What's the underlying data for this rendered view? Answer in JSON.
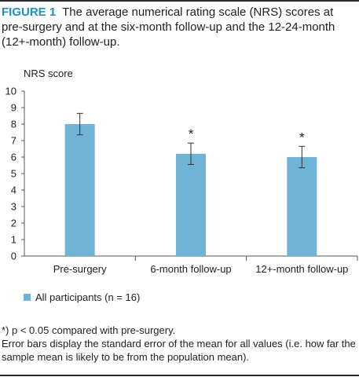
{
  "figure": {
    "label": "FIGURE 1",
    "caption": "The average numerical rating scale (NRS) scores at pre-surgery and at the six-month follow-up and the 12-24-month (12+-month) follow-up."
  },
  "chart_data": {
    "type": "bar",
    "ylabel": "NRS score",
    "xlabel": "",
    "ylim": [
      0,
      10
    ],
    "yticks": [
      "0",
      "1",
      "2",
      "3",
      "4",
      "5",
      "6",
      "7",
      "8",
      "9",
      "10"
    ],
    "categories": [
      "Pre-surgery",
      "6-month follow-up",
      "12+-month follow-up"
    ],
    "series": [
      {
        "name": "All participants (n = 16)",
        "values": [
          8.0,
          6.2,
          6.0
        ],
        "error": [
          0.65,
          0.65,
          0.65
        ],
        "color": "#6fb3d6"
      }
    ],
    "annotations": [
      "",
      "*",
      "*"
    ],
    "grid": false,
    "legend_position": "bottom-left"
  },
  "footnotes": {
    "significance": "*) p < 0.05 compared with pre-surgery.",
    "error_bars": "Error bars display the standard error of the mean for all values (i.e. how far the sample mean is likely to be from the population mean)."
  }
}
